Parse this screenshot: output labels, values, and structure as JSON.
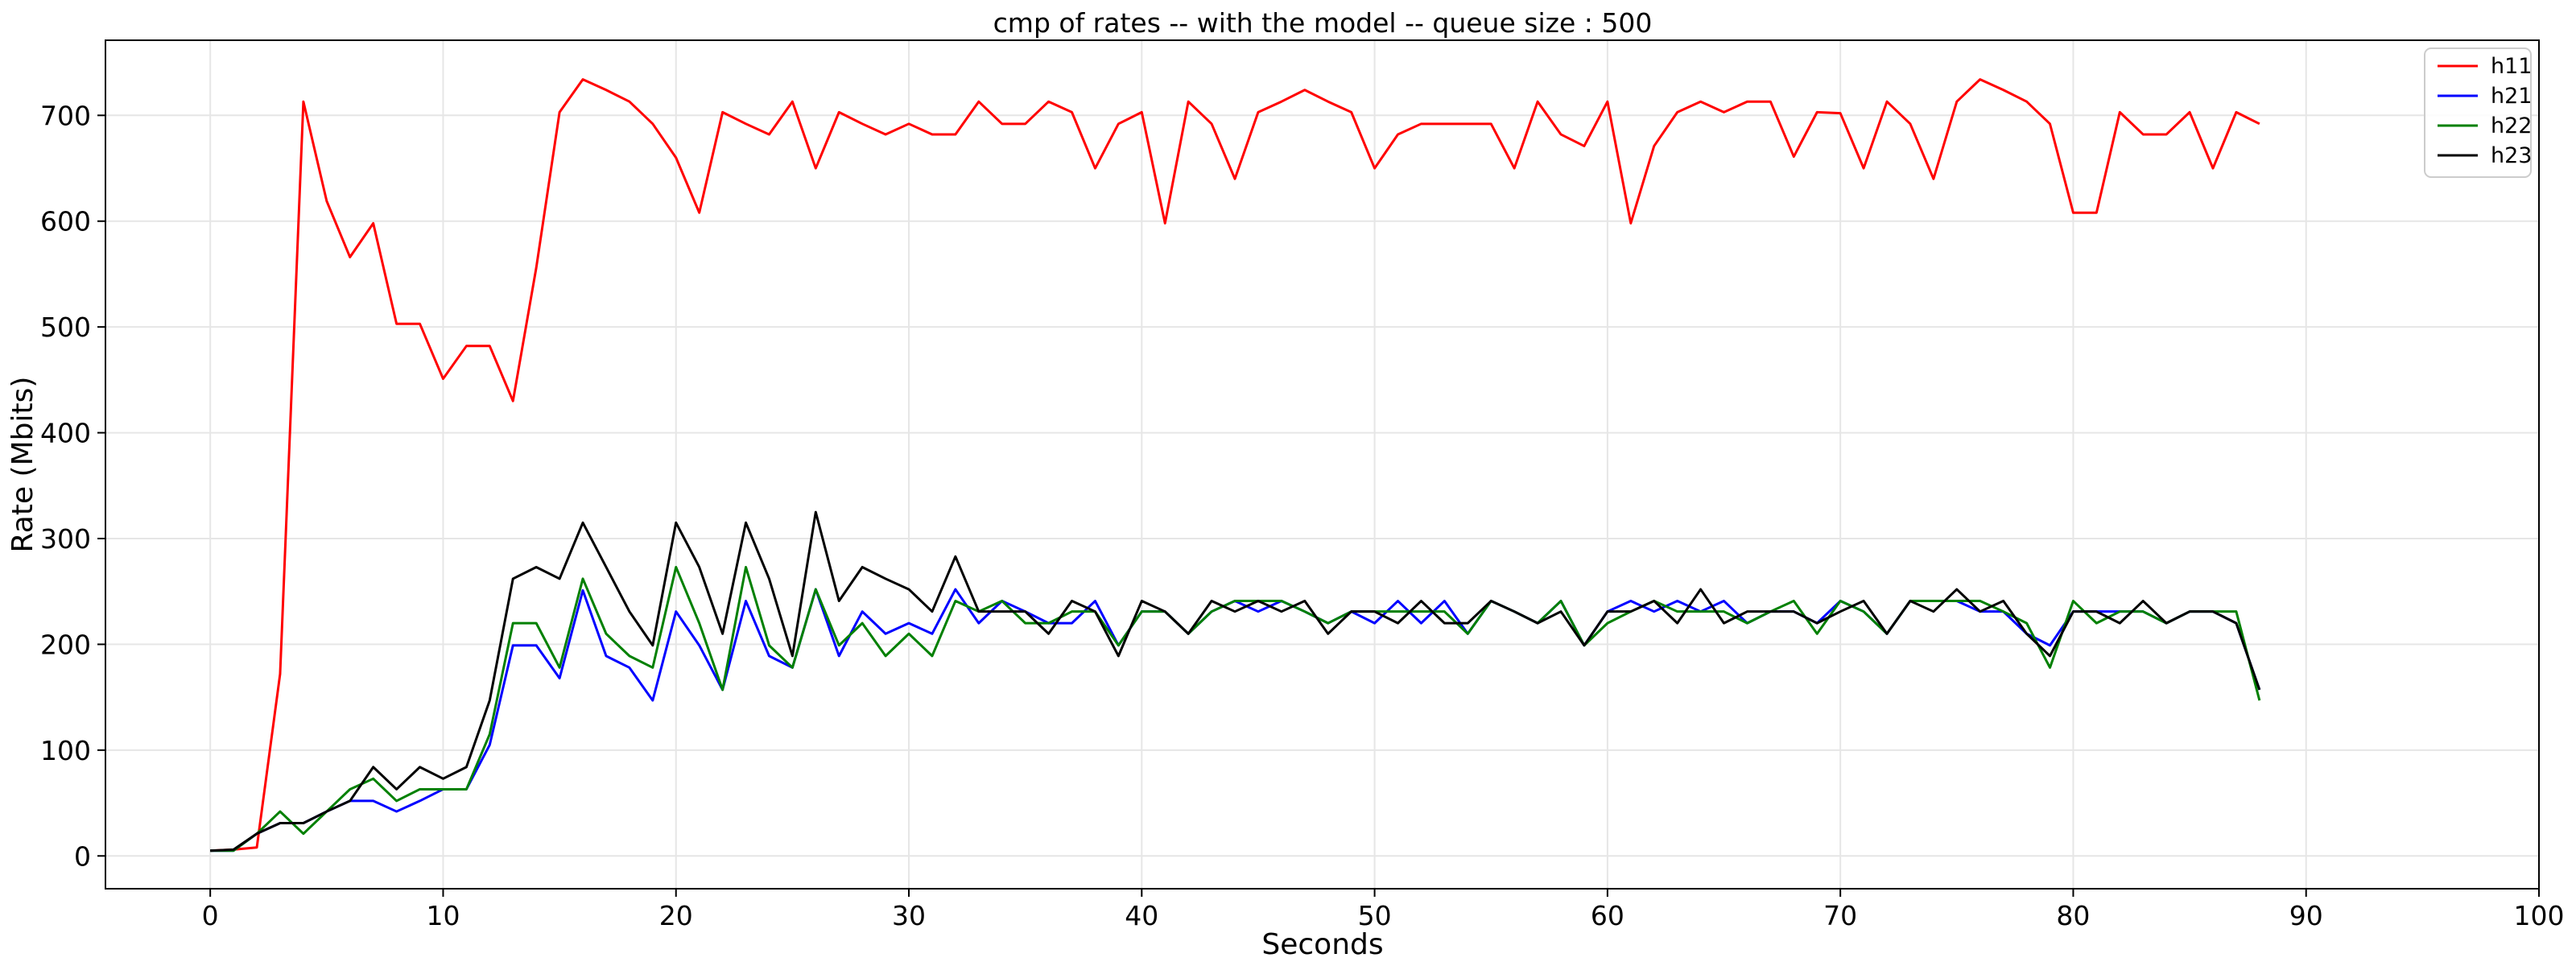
{
  "chart_data": {
    "type": "line",
    "title": "cmp of rates -- with the model -- queue size : 500",
    "xlabel": "Seconds",
    "ylabel": "Rate (Mbits)",
    "xlim": [
      -4.5,
      100
    ],
    "ylim": [
      -31,
      771
    ],
    "xticks": [
      0,
      10,
      20,
      30,
      40,
      50,
      60,
      70,
      80,
      90,
      100
    ],
    "yticks": [
      0,
      100,
      200,
      300,
      400,
      500,
      600,
      700
    ],
    "grid": true,
    "legend_position": "top-right",
    "series": [
      {
        "name": "h11",
        "color": "#ff0000",
        "x": [
          0,
          1,
          2,
          3,
          4,
          5,
          6,
          7,
          8,
          9,
          10,
          11,
          12,
          13,
          14,
          15,
          16,
          17,
          18,
          19,
          20,
          21,
          22,
          23,
          24,
          25,
          26,
          27,
          28,
          29,
          30,
          31,
          32,
          33,
          34,
          35,
          36,
          37,
          38,
          39,
          40,
          41,
          42,
          43,
          44,
          45,
          46,
          47,
          48,
          49,
          50,
          51,
          52,
          53,
          54,
          55,
          56,
          57,
          58,
          59,
          60,
          61,
          62,
          63,
          64,
          65,
          66,
          67,
          68,
          69,
          70,
          71,
          72,
          73,
          74,
          75,
          76,
          77,
          78,
          79,
          80,
          81,
          82,
          83,
          84,
          85,
          86,
          87,
          88
        ],
        "values": [
          5,
          6,
          8,
          172,
          713,
          619,
          566,
          598,
          503,
          503,
          451,
          482,
          482,
          430,
          556,
          703,
          734,
          724,
          713,
          692,
          660,
          608,
          703,
          692,
          682,
          713,
          650,
          703,
          692,
          682,
          692,
          682,
          682,
          713,
          692,
          692,
          713,
          703,
          650,
          692,
          703,
          598,
          713,
          692,
          640,
          703,
          713,
          724,
          713,
          703,
          650,
          682,
          692,
          692,
          692,
          692,
          650,
          713,
          682,
          671,
          713,
          598,
          671,
          703,
          713,
          703,
          713,
          713,
          661,
          703,
          702,
          650,
          713,
          692,
          640,
          713,
          734,
          724,
          713,
          692,
          608,
          608,
          703,
          682,
          682,
          703,
          650,
          703,
          692
        ]
      },
      {
        "name": "h21",
        "color": "#0000ff",
        "x": [
          0,
          1,
          2,
          3,
          4,
          5,
          6,
          7,
          8,
          9,
          10,
          11,
          12,
          13,
          14,
          15,
          16,
          17,
          18,
          19,
          20,
          21,
          22,
          23,
          24,
          25,
          26,
          27,
          28,
          29,
          30,
          31,
          32,
          33,
          34,
          35,
          36,
          37,
          38,
          39,
          40,
          41,
          42,
          43,
          44,
          45,
          46,
          47,
          48,
          49,
          50,
          51,
          52,
          53,
          54,
          55,
          56,
          57,
          58,
          59,
          60,
          61,
          62,
          63,
          64,
          65,
          66,
          67,
          68,
          69,
          70,
          71,
          72,
          73,
          74,
          75,
          76,
          77,
          78,
          79,
          80,
          81,
          82,
          83,
          84,
          85,
          86,
          87,
          88
        ],
        "values": [
          5,
          5,
          21,
          31,
          31,
          42,
          52,
          52,
          42,
          52,
          63,
          63,
          105,
          199,
          199,
          168,
          251,
          189,
          178,
          147,
          231,
          199,
          157,
          241,
          189,
          178,
          252,
          189,
          231,
          210,
          220,
          210,
          252,
          220,
          241,
          231,
          220,
          220,
          241,
          199,
          231,
          231,
          210,
          231,
          241,
          231,
          241,
          231,
          220,
          231,
          220,
          241,
          220,
          241,
          210,
          241,
          231,
          220,
          241,
          199,
          231,
          241,
          231,
          241,
          231,
          241,
          220,
          231,
          231,
          220,
          241,
          231,
          210,
          241,
          241,
          241,
          231,
          231,
          210,
          199,
          231,
          231,
          231,
          231,
          220,
          231,
          231,
          220,
          157
        ]
      },
      {
        "name": "h22",
        "color": "#008000",
        "x": [
          0,
          1,
          2,
          3,
          4,
          5,
          6,
          7,
          8,
          9,
          10,
          11,
          12,
          13,
          14,
          15,
          16,
          17,
          18,
          19,
          20,
          21,
          22,
          23,
          24,
          25,
          26,
          27,
          28,
          29,
          30,
          31,
          32,
          33,
          34,
          35,
          36,
          37,
          38,
          39,
          40,
          41,
          42,
          43,
          44,
          45,
          46,
          47,
          48,
          49,
          50,
          51,
          52,
          53,
          54,
          55,
          56,
          57,
          58,
          59,
          60,
          61,
          62,
          63,
          64,
          65,
          66,
          67,
          68,
          69,
          70,
          71,
          72,
          73,
          74,
          75,
          76,
          77,
          78,
          79,
          80,
          81,
          82,
          83,
          84,
          85,
          86,
          87,
          88
        ],
        "values": [
          5,
          5,
          21,
          42,
          21,
          42,
          63,
          73,
          52,
          63,
          63,
          63,
          115,
          220,
          220,
          178,
          262,
          210,
          189,
          178,
          273,
          220,
          157,
          273,
          199,
          178,
          252,
          199,
          220,
          189,
          210,
          189,
          241,
          231,
          241,
          220,
          220,
          231,
          231,
          199,
          231,
          231,
          210,
          231,
          241,
          241,
          241,
          231,
          220,
          231,
          231,
          231,
          231,
          231,
          210,
          241,
          231,
          220,
          241,
          199,
          220,
          231,
          241,
          231,
          231,
          231,
          220,
          231,
          241,
          210,
          241,
          231,
          210,
          241,
          241,
          241,
          241,
          231,
          220,
          178,
          241,
          220,
          231,
          231,
          220,
          231,
          231,
          231,
          147
        ]
      },
      {
        "name": "h23",
        "color": "#000000",
        "x": [
          0,
          1,
          2,
          3,
          4,
          5,
          6,
          7,
          8,
          9,
          10,
          11,
          12,
          13,
          14,
          15,
          16,
          17,
          18,
          19,
          20,
          21,
          22,
          23,
          24,
          25,
          26,
          27,
          28,
          29,
          30,
          31,
          32,
          33,
          34,
          35,
          36,
          37,
          38,
          39,
          40,
          41,
          42,
          43,
          44,
          45,
          46,
          47,
          48,
          49,
          50,
          51,
          52,
          53,
          54,
          55,
          56,
          57,
          58,
          59,
          60,
          61,
          62,
          63,
          64,
          65,
          66,
          67,
          68,
          69,
          70,
          71,
          72,
          73,
          74,
          75,
          76,
          77,
          78,
          79,
          80,
          81,
          82,
          83,
          84,
          85,
          86,
          87,
          88
        ],
        "values": [
          5,
          6,
          21,
          31,
          31,
          42,
          52,
          84,
          63,
          84,
          73,
          84,
          147,
          262,
          273,
          262,
          315,
          273,
          231,
          199,
          315,
          273,
          210,
          315,
          262,
          189,
          325,
          241,
          273,
          262,
          252,
          231,
          283,
          231,
          231,
          231,
          210,
          241,
          231,
          189,
          241,
          231,
          210,
          241,
          231,
          241,
          231,
          241,
          210,
          231,
          231,
          220,
          241,
          220,
          220,
          241,
          231,
          220,
          231,
          199,
          231,
          231,
          241,
          220,
          252,
          220,
          231,
          231,
          231,
          220,
          231,
          241,
          210,
          241,
          231,
          252,
          231,
          241,
          210,
          189,
          231,
          231,
          220,
          241,
          220,
          231,
          231,
          220,
          157
        ]
      }
    ]
  }
}
